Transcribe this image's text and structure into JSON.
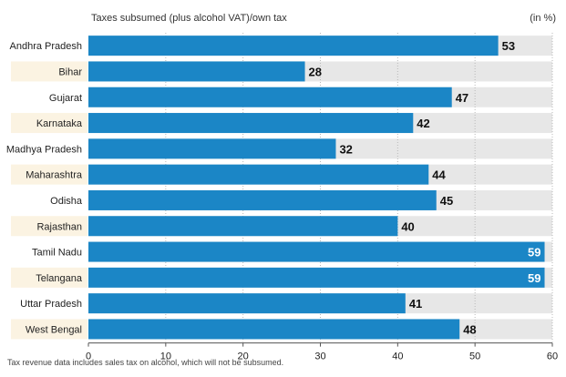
{
  "chart_data": {
    "type": "bar",
    "orientation": "horizontal",
    "title": "Taxes subsumed (plus alcohol VAT)/own tax",
    "unit": "(in %)",
    "categories": [
      "Andhra Pradesh",
      "Bihar",
      "Gujarat",
      "Karnataka",
      "Madhya Pradesh",
      "Maharashtra",
      "Odisha",
      "Rajasthan",
      "Tamil Nadu",
      "Telangana",
      "Uttar Pradesh",
      "West Bengal"
    ],
    "values": [
      53,
      28,
      47,
      42,
      32,
      44,
      45,
      40,
      59,
      59,
      41,
      48
    ],
    "xlim": [
      0,
      60
    ],
    "xticks": [
      0,
      10,
      20,
      30,
      40,
      50,
      60
    ],
    "grid": true,
    "note": "Tax revenue data includes sales tax on alcohol, which will not be subsumed."
  },
  "colors": {
    "bar": "#1b86c6",
    "track": "#e7e7e7",
    "label_bg_even": "#ffffff",
    "label_bg_odd": "#fbf3e2",
    "grid": "#b8b8b8"
  }
}
